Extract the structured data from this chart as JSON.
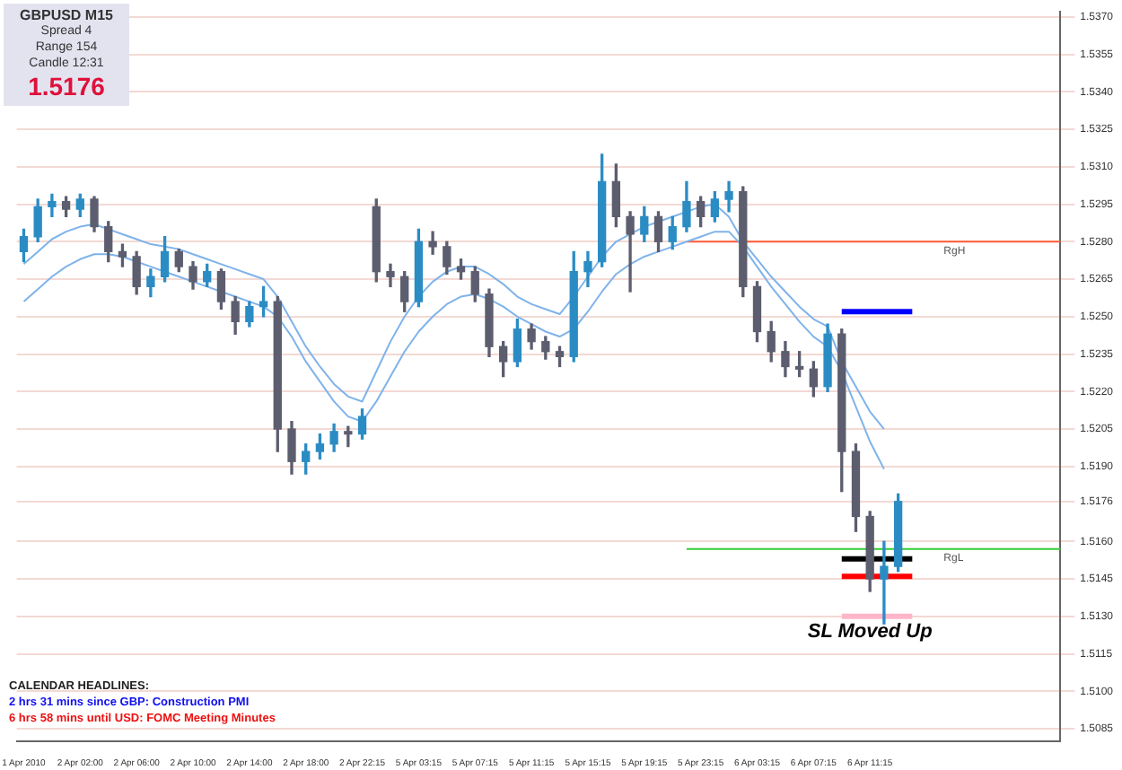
{
  "chart_data": {
    "type": "candlestick",
    "title": "GBPUSD  M15",
    "categories": [
      "1 Apr 2010",
      null,
      null,
      null,
      "2 Apr 02:00",
      null,
      null,
      null,
      "2 Apr 06:00",
      null,
      null,
      null,
      "2 Apr 10:00",
      null,
      null,
      null,
      "2 Apr 14:00",
      null,
      null,
      null,
      "2 Apr 18:00",
      null,
      null,
      null,
      "2 Apr 22:15",
      null,
      null,
      null,
      "5 Apr 03:15",
      null,
      null,
      null,
      "5 Apr 07:15",
      null,
      null,
      null,
      "5 Apr 11:15",
      null,
      null,
      null,
      "5 Apr 15:15",
      null,
      null,
      null,
      "5 Apr 19:15",
      null,
      null,
      null,
      "5 Apr 23:15",
      null,
      null,
      null,
      "6 Apr 03:15",
      null,
      null,
      null,
      "6 Apr 07:15",
      null,
      null,
      null,
      "6 Apr 11:15",
      null,
      null,
      null,
      null,
      null,
      null,
      null,
      null,
      null,
      null,
      null,
      null,
      null
    ],
    "ohlc": [
      [
        1.5276,
        1.5285,
        1.5272,
        1.5282
      ],
      [
        1.5282,
        1.5297,
        1.528,
        1.5294
      ],
      [
        1.5294,
        1.5299,
        1.529,
        1.5296
      ],
      [
        1.5296,
        1.5298,
        1.529,
        1.5293
      ],
      [
        1.5293,
        1.5299,
        1.529,
        1.5297
      ],
      [
        1.5297,
        1.5298,
        1.5284,
        1.5286
      ],
      [
        1.5286,
        1.5288,
        1.5272,
        1.5276
      ],
      [
        1.5276,
        1.5279,
        1.527,
        1.5274
      ],
      [
        1.5274,
        1.5276,
        1.5259,
        1.5262
      ],
      [
        1.5262,
        1.5269,
        1.5258,
        1.5266
      ],
      [
        1.5266,
        1.5282,
        1.5264,
        1.5276
      ],
      [
        1.5276,
        1.5277,
        1.5268,
        1.527
      ],
      [
        1.527,
        1.5272,
        1.5261,
        1.5264
      ],
      [
        1.5264,
        1.5271,
        1.5262,
        1.5268
      ],
      [
        1.5268,
        1.5269,
        1.5253,
        1.5256
      ],
      [
        1.5256,
        1.5258,
        1.5243,
        1.5248
      ],
      [
        1.5248,
        1.5256,
        1.5246,
        1.5254
      ],
      [
        1.5254,
        1.5262,
        1.525,
        1.5256
      ],
      [
        1.5256,
        1.5258,
        1.5196,
        1.5205
      ],
      [
        1.5205,
        1.5208,
        1.5187,
        1.5192
      ],
      [
        1.5192,
        1.5199,
        1.5187,
        1.5196
      ],
      [
        1.5196,
        1.5203,
        1.5193,
        1.5199
      ],
      [
        1.5199,
        1.5207,
        1.5196,
        1.5204
      ],
      [
        1.5204,
        1.5206,
        1.5198,
        1.5203
      ],
      [
        1.5203,
        1.5213,
        1.5201,
        1.521
      ],
      [
        1.5294,
        1.5297,
        1.5264,
        1.5268
      ],
      [
        1.5268,
        1.5271,
        1.5262,
        1.5266
      ],
      [
        1.5266,
        1.5268,
        1.5252,
        1.5256
      ],
      [
        1.5256,
        1.5285,
        1.5254,
        1.528
      ],
      [
        1.528,
        1.5284,
        1.5275,
        1.5278
      ],
      [
        1.5278,
        1.528,
        1.5267,
        1.527
      ],
      [
        1.527,
        1.5273,
        1.5265,
        1.5268
      ],
      [
        1.5268,
        1.527,
        1.5256,
        1.5259
      ],
      [
        1.5259,
        1.5261,
        1.5234,
        1.5238
      ],
      [
        1.5238,
        1.524,
        1.5226,
        1.5232
      ],
      [
        1.5232,
        1.5249,
        1.523,
        1.5245
      ],
      [
        1.5245,
        1.5247,
        1.5237,
        1.524
      ],
      [
        1.524,
        1.5242,
        1.5233,
        1.5236
      ],
      [
        1.5236,
        1.5238,
        1.523,
        1.5234
      ],
      [
        1.5234,
        1.5276,
        1.5232,
        1.5268
      ],
      [
        1.5268,
        1.5276,
        1.5262,
        1.5272
      ],
      [
        1.5272,
        1.5315,
        1.527,
        1.5304
      ],
      [
        1.5304,
        1.5311,
        1.5286,
        1.529
      ],
      [
        1.529,
        1.5292,
        1.526,
        1.5283
      ],
      [
        1.5283,
        1.5294,
        1.528,
        1.529
      ],
      [
        1.529,
        1.5292,
        1.5276,
        1.528
      ],
      [
        1.528,
        1.529,
        1.5277,
        1.5286
      ],
      [
        1.5286,
        1.5304,
        1.5284,
        1.5296
      ],
      [
        1.5296,
        1.5298,
        1.5286,
        1.529
      ],
      [
        1.529,
        1.53,
        1.5288,
        1.5297
      ],
      [
        1.5297,
        1.5304,
        1.5292,
        1.53
      ],
      [
        1.53,
        1.5302,
        1.5258,
        1.5262
      ],
      [
        1.5262,
        1.5264,
        1.524,
        1.5244
      ],
      [
        1.5244,
        1.5248,
        1.5232,
        1.5236
      ],
      [
        1.5236,
        1.524,
        1.5226,
        1.523
      ],
      [
        1.523,
        1.5236,
        1.5226,
        1.5229
      ],
      [
        1.5229,
        1.5232,
        1.5218,
        1.5222
      ],
      [
        1.5222,
        1.5247,
        1.522,
        1.5243
      ],
      [
        1.5243,
        1.5245,
        1.518,
        1.5196
      ],
      [
        1.5196,
        1.5199,
        1.5164,
        1.517
      ],
      [
        1.517,
        1.5172,
        1.514,
        1.5145
      ],
      [
        1.5145,
        1.516,
        1.5127,
        1.515
      ],
      [
        1.515,
        1.5179,
        1.5148,
        1.5176
      ],
      null,
      null,
      null,
      null,
      null,
      null,
      null,
      null,
      null,
      null,
      null
    ],
    "colors": [
      "#2b8cc4",
      "#2b8cc4",
      "#2b8cc4",
      "#5c5d6e",
      "#2b8cc4",
      "#5c5d6e",
      "#5c5d6e",
      "#5c5d6e",
      "#5c5d6e",
      "#2b8cc4",
      "#2b8cc4",
      "#5c5d6e",
      "#5c5d6e",
      "#2b8cc4",
      "#5c5d6e",
      "#5c5d6e",
      "#2b8cc4",
      "#2b8cc4",
      "#5c5d6e",
      "#5c5d6e",
      "#2b8cc4",
      "#2b8cc4",
      "#2b8cc4",
      "#5c5d6e",
      "#2b8cc4",
      "#5c5d6e",
      "#5c5d6e",
      "#5c5d6e",
      "#2b8cc4",
      "#5c5d6e",
      "#5c5d6e",
      "#5c5d6e",
      "#5c5d6e",
      "#5c5d6e",
      "#5c5d6e",
      "#2b8cc4",
      "#5c5d6e",
      "#5c5d6e",
      "#5c5d6e",
      "#2b8cc4",
      "#2b8cc4",
      "#2b8cc4",
      "#5c5d6e",
      "#5c5d6e",
      "#2b8cc4",
      "#5c5d6e",
      "#2b8cc4",
      "#2b8cc4",
      "#5c5d6e",
      "#2b8cc4",
      "#2b8cc4",
      "#5c5d6e",
      "#5c5d6e",
      "#5c5d6e",
      "#5c5d6e",
      "#5c5d6e",
      "#5c5d6e",
      "#2b8cc4",
      "#5c5d6e",
      "#5c5d6e",
      "#5c5d6e",
      "#2b8cc4",
      "#2b8cc4",
      null,
      null,
      null,
      null,
      null,
      null,
      null,
      null,
      null,
      null,
      null
    ],
    "series": [
      {
        "type": "line",
        "color": "#7fb3ea",
        "values": [
          1.5271,
          1.5276,
          1.5281,
          1.5284,
          1.5286,
          1.5287,
          1.5285,
          1.5283,
          1.5281,
          1.5279,
          1.5278,
          1.5277,
          1.5275,
          1.5273,
          1.5271,
          1.5269,
          1.5267,
          1.5265,
          1.5258,
          1.5248,
          1.5238,
          1.523,
          1.5223,
          1.5218,
          1.5216,
          1.5228,
          1.524,
          1.525,
          1.5258,
          1.5264,
          1.5268,
          1.527,
          1.527,
          1.5267,
          1.5263,
          1.5258,
          1.5255,
          1.5253,
          1.5251,
          1.5258,
          1.5266,
          1.5274,
          1.528,
          1.5283,
          1.5286,
          1.5288,
          1.529,
          1.5292,
          1.5294,
          1.5295,
          1.529,
          1.528,
          1.5273,
          1.5266,
          1.526,
          1.5254,
          1.5249,
          1.5246,
          1.5232,
          1.5222,
          1.5212,
          1.5205,
          null,
          null,
          null,
          null,
          null,
          null,
          null,
          null,
          null,
          null,
          null,
          null
        ]
      },
      {
        "type": "line",
        "color": "#7fb3ea",
        "values": [
          1.5256,
          1.5261,
          1.5266,
          1.527,
          1.5273,
          1.5275,
          1.5275,
          1.5274,
          1.5272,
          1.527,
          1.5268,
          1.5266,
          1.5264,
          1.5262,
          1.526,
          1.5258,
          1.5256,
          1.5254,
          1.525,
          1.5242,
          1.5232,
          1.5224,
          1.5216,
          1.521,
          1.5208,
          1.5216,
          1.5226,
          1.5236,
          1.5244,
          1.525,
          1.5255,
          1.5258,
          1.5259,
          1.5257,
          1.5254,
          1.525,
          1.5247,
          1.5244,
          1.5242,
          1.5245,
          1.5252,
          1.526,
          1.5267,
          1.5271,
          1.5274,
          1.5276,
          1.5278,
          1.528,
          1.5282,
          1.5284,
          1.5284,
          1.5278,
          1.527,
          1.5262,
          1.5255,
          1.5248,
          1.5242,
          1.5238,
          1.5228,
          1.5214,
          1.52,
          1.5189,
          null,
          null,
          null,
          null,
          null,
          null,
          null,
          null,
          null,
          null,
          null,
          null
        ]
      },
      {
        "type": "line",
        "color": "#0000ff",
        "values": [
          null,
          null,
          null,
          null,
          null,
          null,
          null,
          null,
          null,
          null,
          null,
          null,
          null,
          null,
          null,
          null,
          null,
          null,
          null,
          null,
          null,
          null,
          null,
          null,
          null,
          null,
          null,
          null,
          null,
          null,
          null,
          null,
          null,
          null,
          null,
          null,
          null,
          null,
          null,
          null,
          null,
          null,
          null,
          null,
          null,
          null,
          null,
          null,
          null,
          null,
          null,
          null,
          null,
          null,
          null,
          null,
          null,
          null,
          1.5252,
          1.5252,
          1.5252,
          1.5252,
          1.5252,
          1.5252,
          null,
          null,
          null,
          null,
          null,
          null,
          null,
          null,
          null,
          null
        ]
      },
      {
        "type": "line",
        "color": "#000000",
        "values": [
          null,
          null,
          null,
          null,
          null,
          null,
          null,
          null,
          null,
          null,
          null,
          null,
          null,
          null,
          null,
          null,
          null,
          null,
          null,
          null,
          null,
          null,
          null,
          null,
          null,
          null,
          null,
          null,
          null,
          null,
          null,
          null,
          null,
          null,
          null,
          null,
          null,
          null,
          null,
          null,
          null,
          null,
          null,
          null,
          null,
          null,
          null,
          null,
          null,
          null,
          null,
          null,
          null,
          null,
          null,
          null,
          null,
          null,
          1.5153,
          1.5153,
          1.5153,
          1.5153,
          1.5153,
          1.5153,
          null,
          null,
          null,
          null,
          null,
          null,
          null,
          null,
          null,
          null
        ]
      },
      {
        "type": "line",
        "color": "#ff0000",
        "values": [
          null,
          null,
          null,
          null,
          null,
          null,
          null,
          null,
          null,
          null,
          null,
          null,
          null,
          null,
          null,
          null,
          null,
          null,
          null,
          null,
          null,
          null,
          null,
          null,
          null,
          null,
          null,
          null,
          null,
          null,
          null,
          null,
          null,
          null,
          null,
          null,
          null,
          null,
          null,
          null,
          null,
          null,
          null,
          null,
          null,
          null,
          null,
          null,
          null,
          null,
          null,
          null,
          null,
          null,
          null,
          null,
          null,
          null,
          1.5146,
          1.5146,
          1.5146,
          1.5146,
          1.5146,
          1.5146,
          null,
          null,
          null,
          null,
          null,
          null,
          null,
          null,
          null,
          null
        ]
      },
      {
        "type": "line",
        "color": "#ffb6c8",
        "values": [
          null,
          null,
          null,
          null,
          null,
          null,
          null,
          null,
          null,
          null,
          null,
          null,
          null,
          null,
          null,
          null,
          null,
          null,
          null,
          null,
          null,
          null,
          null,
          null,
          null,
          null,
          null,
          null,
          null,
          null,
          null,
          null,
          null,
          null,
          null,
          null,
          null,
          null,
          null,
          null,
          null,
          null,
          null,
          null,
          null,
          null,
          null,
          null,
          null,
          null,
          null,
          null,
          null,
          null,
          null,
          null,
          null,
          null,
          1.513,
          1.513,
          1.513,
          1.513,
          1.513,
          1.513,
          null,
          null,
          null,
          null,
          null,
          null,
          null,
          null,
          null,
          null
        ]
      }
    ],
    "ylim": [
      1.508,
      1.5372
    ],
    "yticks": [
      {
        "value": 1.537,
        "label": "1.5370"
      },
      1.5355,
      {
        "value": 1.534,
        "label": "1.5340"
      },
      1.5325,
      {
        "value": 1.531,
        "label": "1.5310"
      },
      1.5295,
      {
        "value": 1.528,
        "label": "1.5280"
      },
      1.5265,
      {
        "value": 1.525,
        "label": "1.5250"
      },
      1.5235,
      {
        "value": 1.522,
        "label": "1.5220"
      },
      1.5205,
      {
        "value": 1.519,
        "label": "1.5190"
      },
      1.5176,
      {
        "value": 1.516,
        "label": "1.5160"
      },
      1.5145,
      {
        "value": 1.513,
        "label": "1.5130"
      },
      1.5115,
      {
        "value": 1.51,
        "label": "1.5100"
      },
      1.5085
    ],
    "grid": "y",
    "ref_lines": [
      {
        "axis": "y",
        "value": 1.528,
        "label": "RgH",
        "color": "#ff5a36"
      },
      {
        "axis": "y",
        "value": 1.5157,
        "label": "RgL",
        "color": "#33cc33"
      }
    ],
    "annotations": [
      "Spread  4",
      "Range  154",
      "Candle  12:31",
      "1.5176",
      "CALENDAR  HEADLINES:",
      "2 hrs 31 mins since GBP: Construction PMI",
      "6 hrs 58 mins until USD: FOMC Meeting Minutes",
      {
        "text": "SL Moved Up",
        "y": 1.513
      }
    ]
  }
}
